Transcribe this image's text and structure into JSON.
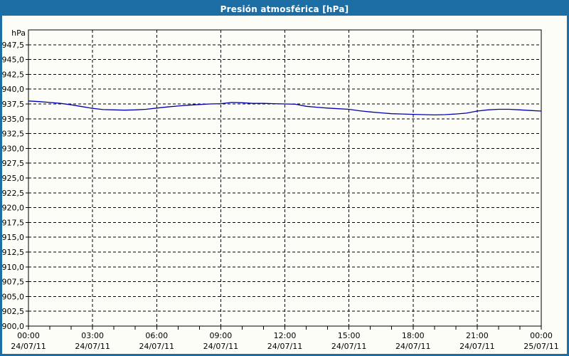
{
  "window": {
    "title": "Presión atmosférica [hPa]"
  },
  "colors": {
    "frame_border": "#1c6ea4",
    "titlebar_bg": "#1c6ea4",
    "titlebar_text": "#ffffff",
    "canvas_bg": "#fdfdf7",
    "axis": "#000000",
    "grid": "#000000",
    "line": "#0000b0"
  },
  "chart_data": {
    "type": "line",
    "title": "Presión atmosférica [hPa]",
    "unit_label": "hPa",
    "xlabel": "",
    "ylabel": "hPa",
    "ylim": [
      900,
      950
    ],
    "x_range_hours": [
      0,
      24
    ],
    "grid": "dashed",
    "legend": "none",
    "line_color": "#0000b0",
    "y_ticks": [
      {
        "value": 947.5,
        "label": "947,5"
      },
      {
        "value": 945.0,
        "label": "945,0"
      },
      {
        "value": 942.5,
        "label": "942,5"
      },
      {
        "value": 940.0,
        "label": "940,0"
      },
      {
        "value": 937.5,
        "label": "937,5"
      },
      {
        "value": 935.0,
        "label": "935,0"
      },
      {
        "value": 932.5,
        "label": "932,5"
      },
      {
        "value": 930.0,
        "label": "930,0"
      },
      {
        "value": 927.5,
        "label": "927,5"
      },
      {
        "value": 925.0,
        "label": "925,0"
      },
      {
        "value": 922.5,
        "label": "922,5"
      },
      {
        "value": 920.0,
        "label": "920,0"
      },
      {
        "value": 917.5,
        "label": "917,5"
      },
      {
        "value": 915.0,
        "label": "915,0"
      },
      {
        "value": 912.5,
        "label": "912,5"
      },
      {
        "value": 910.0,
        "label": "910,0"
      },
      {
        "value": 907.5,
        "label": "907,5"
      },
      {
        "value": 905.0,
        "label": "905,0"
      },
      {
        "value": 902.5,
        "label": "902,5"
      },
      {
        "value": 900.0,
        "label": "900,0"
      }
    ],
    "x_ticks": [
      {
        "hour": 0,
        "time": "00:00",
        "date": "24/07/11"
      },
      {
        "hour": 3,
        "time": "03:00",
        "date": "24/07/11"
      },
      {
        "hour": 6,
        "time": "06:00",
        "date": "24/07/11"
      },
      {
        "hour": 9,
        "time": "09:00",
        "date": "24/07/11"
      },
      {
        "hour": 12,
        "time": "12:00",
        "date": "24/07/11"
      },
      {
        "hour": 15,
        "time": "15:00",
        "date": "24/07/11"
      },
      {
        "hour": 18,
        "time": "18:00",
        "date": "24/07/11"
      },
      {
        "hour": 21,
        "time": "21:00",
        "date": "24/07/11"
      },
      {
        "hour": 24,
        "time": "00:00",
        "date": "25/07/11"
      }
    ],
    "minor_tick_every_hours": 1,
    "x_hours": [
      0,
      0.5,
      1,
      1.5,
      2,
      2.5,
      3,
      3.5,
      4,
      4.5,
      5,
      5.5,
      6,
      6.5,
      7,
      7.5,
      8,
      8.5,
      9,
      9.5,
      10,
      10.5,
      11,
      11.5,
      12,
      12.5,
      13,
      13.5,
      14,
      14.5,
      15,
      15.5,
      16,
      16.5,
      17,
      17.5,
      18,
      18.5,
      19,
      19.5,
      20,
      20.5,
      21,
      21.5,
      22,
      22.5,
      23,
      23.5,
      24
    ],
    "values": [
      938.0,
      937.9,
      937.75,
      937.6,
      937.35,
      937.05,
      936.75,
      936.55,
      936.5,
      936.45,
      936.5,
      936.6,
      936.8,
      937.0,
      937.15,
      937.3,
      937.4,
      937.5,
      937.55,
      937.75,
      937.7,
      937.6,
      937.6,
      937.55,
      937.5,
      937.45,
      937.1,
      936.95,
      936.8,
      936.7,
      936.6,
      936.35,
      936.15,
      936.0,
      935.85,
      935.8,
      935.75,
      935.7,
      935.65,
      935.7,
      935.8,
      935.95,
      936.3,
      936.5,
      936.6,
      936.6,
      936.5,
      936.4,
      936.3
    ]
  }
}
